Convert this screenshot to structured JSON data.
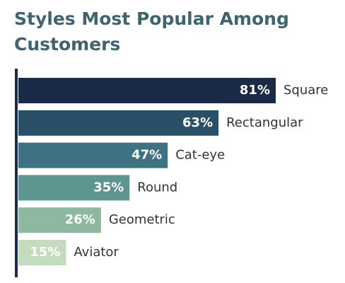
{
  "chart_data": {
    "type": "bar",
    "orientation": "horizontal",
    "title_lines": [
      "Styles Most Popular Among",
      "Customers"
    ],
    "categories": [
      "Square",
      "Rectangular",
      "Cat-eye",
      "Round",
      "Geometric",
      "Aviator"
    ],
    "values": [
      81,
      63,
      47,
      35,
      26,
      15
    ],
    "value_labels": [
      "81%",
      "63%",
      "47%",
      "35%",
      "26%",
      "15%"
    ],
    "colors": [
      "#1b2a47",
      "#2a5068",
      "#3e7282",
      "#5e9590",
      "#8fb8a0",
      "#c3dcbd"
    ]
  }
}
